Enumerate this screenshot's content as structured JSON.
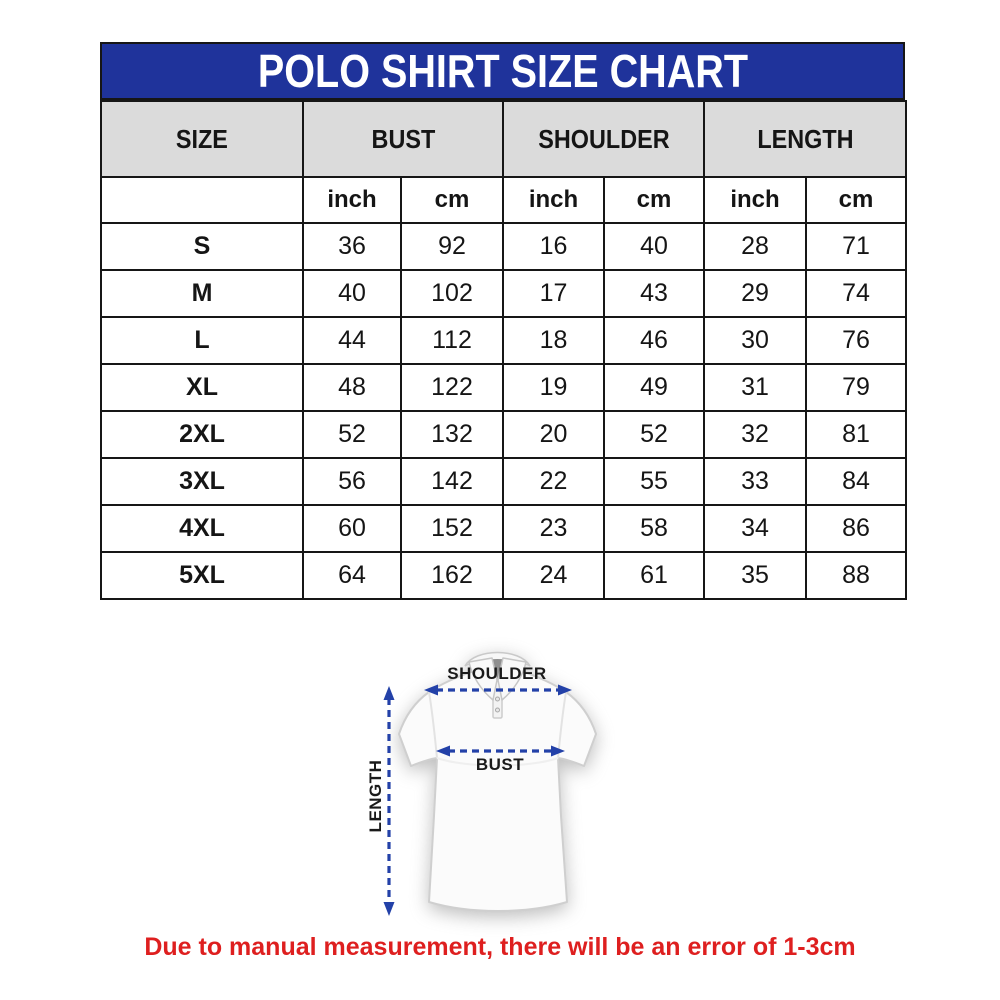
{
  "title": "POLO SHIRT SIZE CHART",
  "table": {
    "groups": [
      {
        "label": "SIZE",
        "units": []
      },
      {
        "label": "BUST",
        "units": [
          "inch",
          "cm"
        ]
      },
      {
        "label": "SHOULDER",
        "units": [
          "inch",
          "cm"
        ]
      },
      {
        "label": "LENGTH",
        "units": [
          "inch",
          "cm"
        ]
      }
    ]
  },
  "chart_data": {
    "type": "table",
    "title": "POLO SHIRT SIZE CHART",
    "columns": [
      "SIZE",
      "BUST (inch)",
      "BUST (cm)",
      "SHOULDER (inch)",
      "SHOULDER (cm)",
      "LENGTH (inch)",
      "LENGTH (cm)"
    ],
    "rows": [
      [
        "S",
        36,
        92,
        16,
        40,
        28,
        71
      ],
      [
        "M",
        40,
        102,
        17,
        43,
        29,
        74
      ],
      [
        "L",
        44,
        112,
        18,
        46,
        30,
        76
      ],
      [
        "XL",
        48,
        122,
        19,
        49,
        31,
        79
      ],
      [
        "2XL",
        52,
        132,
        20,
        52,
        32,
        81
      ],
      [
        "3XL",
        56,
        142,
        22,
        55,
        33,
        84
      ],
      [
        "4XL",
        60,
        152,
        23,
        58,
        34,
        86
      ],
      [
        "5XL",
        64,
        162,
        24,
        61,
        35,
        88
      ]
    ]
  },
  "diagram": {
    "shoulder_label": "SHOULDER",
    "bust_label": "BUST",
    "length_label": "LENGTH"
  },
  "note": "Due to manual measurement, there will be an error of 1-3cm",
  "colors": {
    "banner_blue": "#1f339b",
    "header_gray": "#dbdbdb",
    "border_dark": "#161616",
    "arrow_blue": "#2341a8",
    "note_red": "#de1f1f",
    "text_dark": "#151515"
  }
}
